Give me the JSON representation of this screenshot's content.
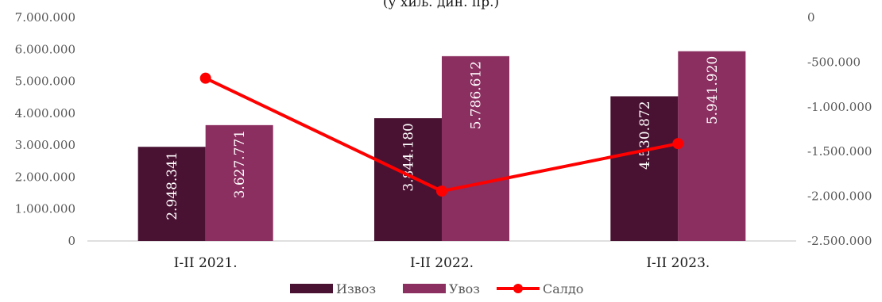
{
  "chart_data": {
    "type": "bar",
    "title": "(у хиљ. дин. пр.)",
    "categories": [
      "I-II 2021.",
      "I-II 2022.",
      "I-II 2023."
    ],
    "series": [
      {
        "name": "Извоз",
        "type": "bar",
        "axis": "left",
        "color": "#4a1232",
        "values": [
          2948341,
          3844180,
          4530872
        ],
        "labels": [
          "2.948.341",
          "3.844.180",
          "4.530.872"
        ]
      },
      {
        "name": "Увоз",
        "type": "bar",
        "axis": "left",
        "color": "#8b2e60",
        "values": [
          3627771,
          5786612,
          5941920
        ],
        "labels": [
          "3.627.771",
          "5.786.612",
          "5.941.920"
        ]
      },
      {
        "name": "Салдо",
        "type": "line",
        "axis": "right",
        "color": "#ff0000",
        "values": [
          -679430,
          -1942432,
          -1411048
        ]
      }
    ],
    "left_axis": {
      "ylim": [
        0,
        7000000
      ],
      "ticks": [
        0,
        1000000,
        2000000,
        3000000,
        4000000,
        5000000,
        6000000,
        7000000
      ],
      "tick_labels": [
        "0",
        "1.000.000",
        "2.000.000",
        "3.000.000",
        "4.000.000",
        "5.000.000",
        "6.000.000",
        "7.000.000"
      ]
    },
    "right_axis": {
      "ylim": [
        -2500000,
        0
      ],
      "ticks": [
        0,
        -500000,
        -1000000,
        -1500000,
        -2000000,
        -2500000
      ],
      "tick_labels": [
        "0",
        "-500.000",
        "-1.000.000",
        "-1.500.000",
        "-2.000.000",
        "-2.500.000"
      ]
    },
    "grid": false,
    "legend_position": "bottom"
  }
}
